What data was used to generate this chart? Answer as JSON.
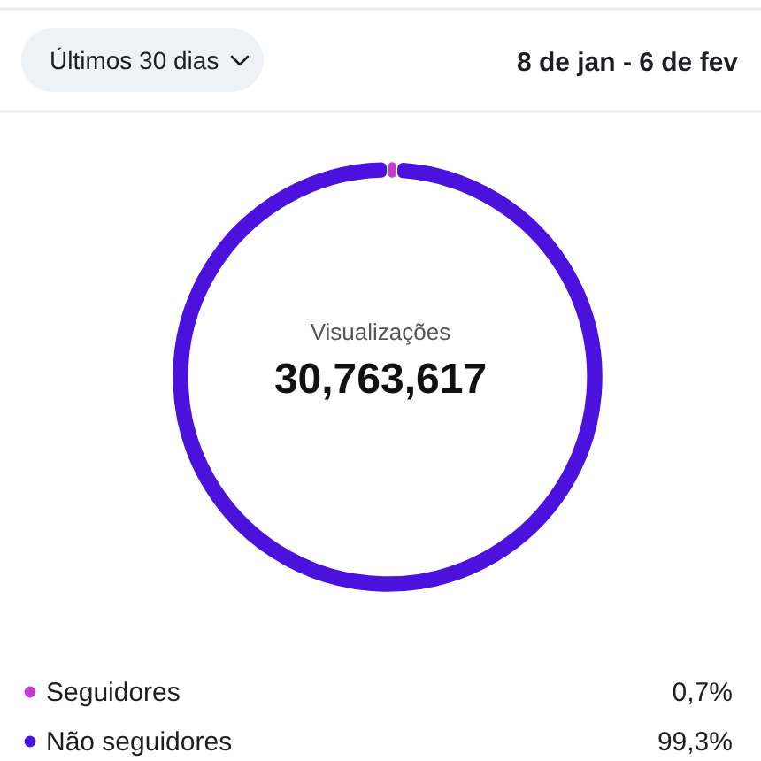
{
  "chart_data": {
    "type": "donut",
    "title": "Visualizações",
    "subtitle": "30,763,617",
    "categories": [
      "Seguidores",
      "Não seguidores"
    ],
    "values": [
      0.7,
      99.3
    ],
    "colors": [
      "#c23dce",
      "#4b12de"
    ],
    "value_labels": [
      "0,7%",
      "99,3%"
    ],
    "legend": "bottom",
    "annotations": [
      "Últimos 30 dias",
      "8 de jan - 6 de fev"
    ]
  }
}
